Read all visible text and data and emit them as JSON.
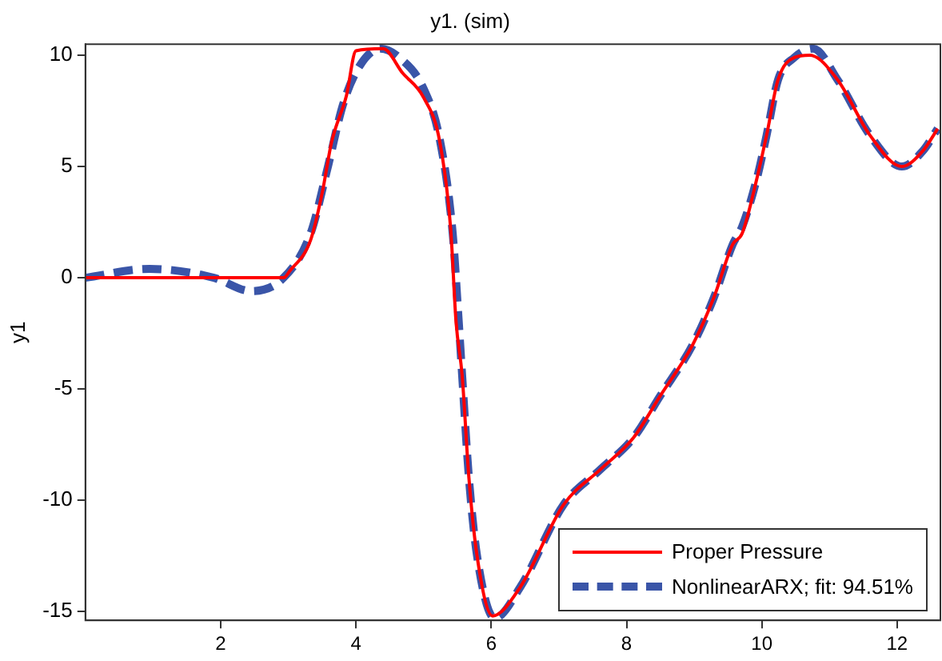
{
  "chart_data": {
    "type": "line",
    "title": "y1. (sim)",
    "ylabel": "y1",
    "xlim": [
      0,
      12.64
    ],
    "xticks": [
      2,
      4,
      6,
      8,
      10,
      12
    ],
    "ylim": [
      -15.4,
      10.5
    ],
    "yticks": [
      -15,
      -10,
      -5,
      0,
      5,
      10
    ],
    "grid": false,
    "legend": "bottom right",
    "marker": "none",
    "series": [
      {
        "name": "Proper Pressure",
        "color": "#ff0000",
        "line_style": "solid",
        "x": [
          0,
          2.93,
          3.02,
          3.33,
          3.5,
          3.64,
          3.86,
          4.0,
          4.4,
          4.69,
          5.0,
          5.24,
          5.4,
          5.48,
          5.57,
          5.67,
          5.79,
          6.02,
          6.43,
          7.07,
          7.62,
          8.1,
          8.5,
          8.98,
          9.29,
          9.57,
          9.71,
          9.93,
          10.07,
          10.24,
          10.48,
          10.71,
          11.12,
          11.6,
          12.07,
          12.38,
          12.6
        ],
        "values": [
          0,
          0,
          0.3,
          1.7,
          3.8,
          6.1,
          8.2,
          10.2,
          10.3,
          9.2,
          8.1,
          6.1,
          2.2,
          -2.0,
          -4.4,
          -9.0,
          -12.5,
          -15.2,
          -13.9,
          -10.2,
          -8.6,
          -7.2,
          -5.3,
          -3.0,
          -0.9,
          1.5,
          2.0,
          4.5,
          6.4,
          8.9,
          9.9,
          10.0,
          8.9,
          6.4,
          5.0,
          5.7,
          6.7
        ]
      },
      {
        "name": "NonlinearARX; fit: 94.51%",
        "color": "#3a55a8",
        "line_style": "dashed",
        "x": [
          0,
          0.95,
          1.9,
          2.45,
          2.93,
          3.33,
          3.57,
          3.81,
          4.05,
          4.36,
          4.64,
          5.0,
          5.24,
          5.43,
          5.52,
          5.57,
          5.67,
          5.79,
          6.05,
          6.43,
          7.07,
          7.62,
          8.1,
          8.5,
          8.98,
          9.29,
          9.57,
          9.71,
          9.93,
          10.07,
          10.24,
          10.48,
          10.76,
          11.12,
          11.6,
          12.07,
          12.38,
          12.6
        ],
        "values": [
          0,
          0.4,
          0,
          -0.6,
          0,
          2.0,
          4.8,
          7.8,
          9.5,
          10.3,
          9.9,
          8.5,
          6.2,
          2.0,
          -2.0,
          -4.4,
          -9.0,
          -12.5,
          -15.3,
          -13.9,
          -10.2,
          -8.6,
          -7.2,
          -5.3,
          -3.0,
          -0.9,
          1.5,
          2.3,
          4.5,
          6.4,
          8.9,
          9.9,
          10.3,
          8.9,
          6.4,
          5.0,
          5.7,
          6.7
        ]
      }
    ]
  }
}
